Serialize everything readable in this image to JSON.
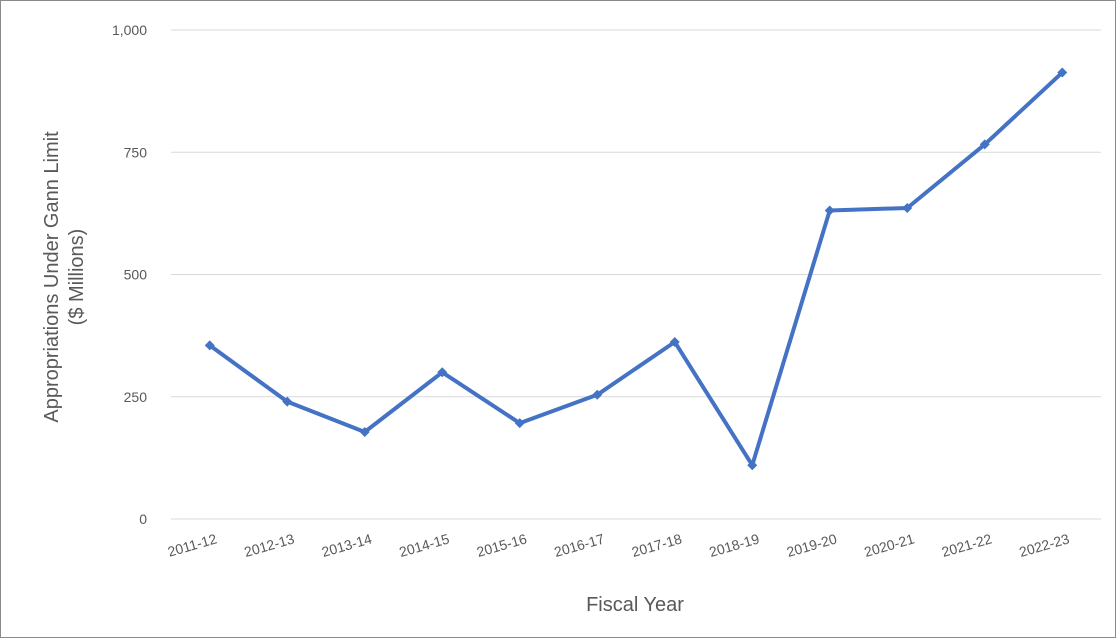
{
  "chart_data": {
    "type": "line",
    "title": "",
    "xlabel": "Fiscal Year",
    "ylabel_lines": [
      "Appropriations Under Gann Limit",
      "($ Millions)"
    ],
    "categories": [
      "2011-12",
      "2012-13",
      "2013-14",
      "2014-15",
      "2015-16",
      "2016-17",
      "2017-18",
      "2018-19",
      "2019-20",
      "2020-21",
      "2021-22",
      "2022-23"
    ],
    "series": [
      {
        "values": [
          355,
          240,
          178,
          300,
          196,
          254,
          362,
          110,
          631,
          636,
          766,
          913
        ],
        "color": "#4472c4"
      }
    ],
    "ylim": [
      0,
      1000
    ],
    "yticks": [
      0,
      250,
      500,
      750,
      1000
    ],
    "ytick_labels": [
      "0",
      "250",
      "500",
      "750",
      "1,000"
    ],
    "grid": true,
    "legend": "none"
  }
}
